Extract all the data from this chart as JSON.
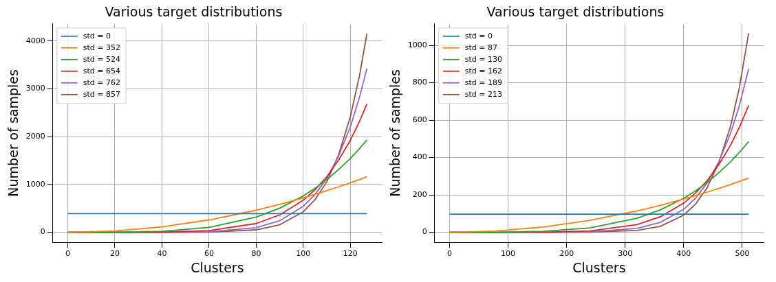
{
  "chart_data": [
    {
      "type": "line",
      "title": "Various target distributions",
      "xlabel": "Clusters",
      "ylabel": "Number of samples",
      "x": [
        0,
        20,
        40,
        60,
        80,
        90,
        100,
        105,
        110,
        115,
        120,
        124,
        127
      ],
      "xlim": [
        -6.35,
        133.35
      ],
      "ylim": [
        -207,
        4357
      ],
      "xticks": [
        0,
        20,
        40,
        60,
        80,
        100,
        120
      ],
      "yticks": [
        0,
        1000,
        2000,
        3000,
        4000
      ],
      "grid": true,
      "legend": "top left",
      "marker": "none",
      "line_style": "solid",
      "series": [
        {
          "name": "std = 0",
          "color": "#1f77b4",
          "values": [
            390,
            390,
            390,
            390,
            390,
            390,
            390,
            390,
            390,
            390,
            390,
            390,
            390
          ]
        },
        {
          "name": "std = 352",
          "color": "#ff7f0e",
          "values": [
            0,
            29,
            115,
            259,
            460,
            583,
            719,
            793,
            870,
            951,
            1036,
            1105,
            1160
          ]
        },
        {
          "name": "std = 524",
          "color": "#2ca02c",
          "values": [
            0,
            1,
            21,
            103,
            319,
            505,
            760,
            920,
            1100,
            1312,
            1546,
            1757,
            1930
          ]
        },
        {
          "name": "std = 654",
          "color": "#d62728",
          "values": [
            0,
            0,
            3,
            35,
            184,
            363,
            670,
            892,
            1163,
            1510,
            1925,
            2332,
            2680
          ]
        },
        {
          "name": "std = 762",
          "color": "#9467bd",
          "values": [
            0,
            0,
            0,
            11,
            97,
            242,
            543,
            792,
            1128,
            1596,
            2205,
            2843,
            3420
          ]
        },
        {
          "name": "std = 857",
          "color": "#8c564b",
          "values": [
            0,
            0,
            0,
            3,
            51,
            158,
            428,
            683,
            1057,
            1620,
            2418,
            3304,
            4150
          ]
        }
      ]
    },
    {
      "type": "line",
      "title": "Various target distributions",
      "xlabel": "Clusters",
      "ylabel": "Number of samples",
      "x": [
        0,
        80,
        160,
        240,
        320,
        360,
        400,
        420,
        440,
        460,
        480,
        495,
        511
      ],
      "xlim": [
        -25.5,
        536.5
      ],
      "ylim": [
        -53,
        1115
      ],
      "xticks": [
        0,
        100,
        200,
        300,
        400,
        500
      ],
      "yticks": [
        0,
        200,
        400,
        600,
        800,
        1000
      ],
      "grid": true,
      "legend": "top left",
      "marker": "none",
      "line_style": "solid",
      "series": [
        {
          "name": "std = 0",
          "color": "#1f77b4",
          "values": [
            97,
            97,
            97,
            97,
            97,
            97,
            97,
            97,
            97,
            97,
            97,
            97,
            97
          ]
        },
        {
          "name": "std = 87",
          "color": "#ff7f0e",
          "values": [
            0,
            7,
            28,
            64,
            114,
            144,
            178,
            196,
            215,
            235,
            256,
            272,
            290
          ]
        },
        {
          "name": "std = 130",
          "color": "#2ca02c",
          "values": [
            0,
            0,
            5,
            24,
            75,
            120,
            182,
            221,
            266,
            319,
            377,
            427,
            485
          ]
        },
        {
          "name": "std = 162",
          "color": "#d62728",
          "values": [
            0,
            0,
            1,
            7,
            41,
            83,
            156,
            210,
            276,
            362,
            466,
            561,
            680
          ]
        },
        {
          "name": "std = 189",
          "color": "#9467bd",
          "values": [
            0,
            0,
            0,
            2,
            21,
            53,
            123,
            182,
            264,
            378,
            529,
            677,
            875
          ]
        },
        {
          "name": "std = 213",
          "color": "#8c564b",
          "values": [
            0,
            0,
            0,
            1,
            10,
            32,
            92,
            150,
            238,
            373,
            567,
            773,
            1065
          ]
        }
      ]
    }
  ]
}
